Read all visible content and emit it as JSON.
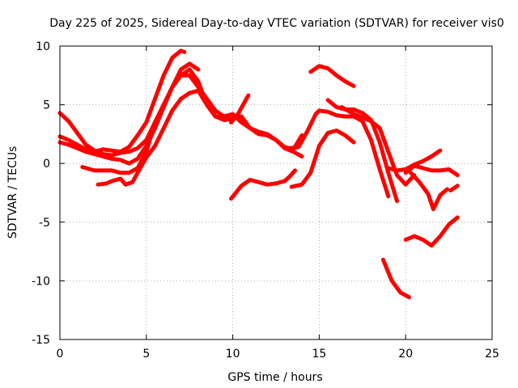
{
  "chart_data": {
    "type": "scatter",
    "title": "Day 225 of 2025, Sidereal Day-to-day VTEC variation (SDTVAR) for receiver vis0",
    "xlabel": "GPS time / hours",
    "ylabel": "SDTVAR / TECUs",
    "xlim": [
      0,
      25
    ],
    "ylim": [
      -15,
      10
    ],
    "grid": true,
    "x_ticks": [
      0,
      5,
      10,
      15,
      20,
      25
    ],
    "y_ticks": [
      -15,
      -10,
      -5,
      0,
      5,
      10
    ],
    "x_tick_labels": [
      "0",
      "5",
      "10",
      "15",
      "20",
      "25"
    ],
    "y_tick_labels": [
      "-15",
      "-10",
      "-5",
      "0",
      "5",
      "10"
    ],
    "series_color": "#ff0000",
    "series": [
      {
        "name": "arc-1",
        "x": [
          0,
          0.5,
          1,
          1.5,
          2,
          2.5,
          3,
          3.5,
          4,
          4.5,
          5,
          5.5,
          6,
          6.5,
          7,
          7.5,
          8,
          8.5,
          9,
          9.5,
          10
        ],
        "y": [
          4.3,
          3.6,
          2.6,
          1.6,
          1.1,
          0.8,
          0.7,
          0.9,
          1.0,
          1.3,
          2.0,
          3.5,
          5.0,
          6.5,
          7.5,
          7.5,
          6.5,
          5.5,
          4.5,
          4.0,
          4.0
        ]
      },
      {
        "name": "arc-2",
        "x": [
          0,
          0.5,
          1,
          1.5,
          2,
          2.5,
          3,
          3.5,
          4,
          4.5,
          5,
          5.5,
          6,
          6.5,
          7,
          7.2
        ],
        "y": [
          2.3,
          2.0,
          1.6,
          1.2,
          1.0,
          1.2,
          1.1,
          1.0,
          1.4,
          2.4,
          3.5,
          5.5,
          7.5,
          9.0,
          9.6,
          9.5
        ]
      },
      {
        "name": "arc-3",
        "x": [
          0,
          0.5,
          1,
          1.5,
          2,
          2.5,
          3,
          3.5,
          4,
          4.5,
          5,
          5.5,
          6,
          6.5,
          7,
          7.5,
          8
        ],
        "y": [
          1.8,
          1.6,
          1.3,
          1.0,
          0.8,
          0.6,
          0.4,
          0.3,
          0.0,
          0.4,
          1.5,
          3.0,
          4.8,
          6.5,
          8.0,
          8.5,
          8.0
        ]
      },
      {
        "name": "arc-4",
        "x": [
          1.3,
          2,
          2.5,
          3,
          3.5,
          4,
          4.5,
          5,
          5.5,
          6,
          6.5,
          7,
          7.5,
          8,
          8.5,
          9,
          9.5,
          10,
          10.5,
          11,
          11.5,
          12,
          12.5,
          13,
          13.5,
          14
        ],
        "y": [
          -0.3,
          -0.6,
          -0.6,
          -0.6,
          -0.8,
          -0.8,
          -0.4,
          1.0,
          3.5,
          5.0,
          6.5,
          7.5,
          8.0,
          7.0,
          5.0,
          4.0,
          4.0,
          4.2,
          3.5,
          3.0,
          2.7,
          2.5,
          2.0,
          1.3,
          1.0,
          0.6
        ]
      },
      {
        "name": "arc-5",
        "x": [
          2.2,
          2.7,
          3,
          3.5,
          3.8,
          4.2,
          4.6,
          5,
          5.5,
          6,
          6.5,
          7,
          7.5,
          8,
          8.5,
          9,
          9.5,
          10
        ],
        "y": [
          -1.8,
          -1.7,
          -1.5,
          -1.3,
          -1.8,
          -1.6,
          -0.5,
          0.5,
          1.5,
          3.0,
          4.5,
          5.5,
          6.0,
          6.2,
          5.0,
          4.0,
          3.7,
          3.8
        ]
      },
      {
        "name": "arc-6",
        "x": [
          9.9,
          10.5,
          11,
          11.5,
          12,
          12.5,
          13,
          13.3,
          13.6
        ],
        "y": [
          -3.0,
          -1.9,
          -1.4,
          -1.6,
          -1.8,
          -1.7,
          -1.5,
          -1.1,
          -0.6
        ]
      },
      {
        "name": "arc-7",
        "x": [
          10,
          10.5,
          11,
          11.5,
          12,
          12.5,
          13,
          13.5,
          14
        ],
        "y": [
          4.0,
          4.0,
          3.0,
          2.5,
          2.4,
          2.0,
          1.4,
          1.2,
          2.4
        ]
      },
      {
        "name": "arc-8",
        "x": [
          9.9,
          10.3,
          10.6,
          10.9
        ],
        "y": [
          3.5,
          4.2,
          5.0,
          5.8
        ]
      },
      {
        "name": "arc-9",
        "x": [
          13.4,
          14,
          14.5,
          15,
          15.5,
          16,
          16.5,
          17
        ],
        "y": [
          -2.0,
          -1.8,
          -0.8,
          1.5,
          2.6,
          2.8,
          2.4,
          1.8
        ]
      },
      {
        "name": "arc-10",
        "x": [
          13.3,
          13.8,
          14.3,
          14.8,
          15,
          15.5,
          16,
          16.5,
          17,
          17.5,
          18,
          18.5,
          19
        ],
        "y": [
          1.3,
          1.4,
          2.7,
          4.2,
          4.5,
          4.4,
          4.1,
          4.0,
          4.0,
          3.6,
          2.0,
          -0.5,
          -2.8
        ]
      },
      {
        "name": "arc-11",
        "x": [
          14.5,
          15,
          15.5,
          16,
          16.5,
          17
        ],
        "y": [
          7.8,
          8.3,
          8.1,
          7.5,
          7.0,
          6.6
        ]
      },
      {
        "name": "arc-12",
        "x": [
          15.5,
          16,
          16.5,
          17,
          17.5,
          18,
          18.5,
          19,
          19.5
        ],
        "y": [
          5.4,
          4.8,
          4.6,
          4.6,
          4.3,
          3.7,
          1.8,
          -0.8,
          -3.2
        ]
      },
      {
        "name": "arc-13",
        "x": [
          16.3,
          17,
          17.5,
          18,
          18.5,
          19,
          19.5,
          20,
          20.5
        ],
        "y": [
          4.8,
          4.2,
          3.9,
          3.6,
          3.0,
          1.0,
          -1.0,
          -1.8,
          -1.0
        ]
      },
      {
        "name": "arc-14",
        "x": [
          19,
          19.5,
          20,
          20.5,
          21,
          21.5,
          22
        ],
        "y": [
          -0.4,
          -0.6,
          -0.5,
          -0.1,
          0.2,
          0.6,
          1.1
        ]
      },
      {
        "name": "arc-15",
        "x": [
          20,
          20.5,
          21,
          21.5,
          22,
          22.5,
          23
        ],
        "y": [
          -0.8,
          -0.2,
          -0.4,
          -0.6,
          -0.6,
          -0.5,
          -1.0
        ]
      },
      {
        "name": "arc-16",
        "x": [
          20.3,
          20.8,
          21.3,
          21.6,
          22,
          22.4
        ],
        "y": [
          -0.8,
          -1.6,
          -2.6,
          -3.9,
          -2.7,
          -2.2
        ]
      },
      {
        "name": "arc-17",
        "x": [
          22.6,
          23
        ],
        "y": [
          -2.3,
          -1.9
        ]
      },
      {
        "name": "arc-18",
        "x": [
          18.7,
          19.2,
          19.7,
          20.2
        ],
        "y": [
          -8.2,
          -10.0,
          -11.0,
          -11.4
        ]
      },
      {
        "name": "arc-19",
        "x": [
          20,
          20.5,
          21,
          21.5,
          22,
          22.5,
          23
        ],
        "y": [
          -6.5,
          -6.2,
          -6.5,
          -7.0,
          -6.2,
          -5.2,
          -4.6
        ]
      }
    ]
  }
}
